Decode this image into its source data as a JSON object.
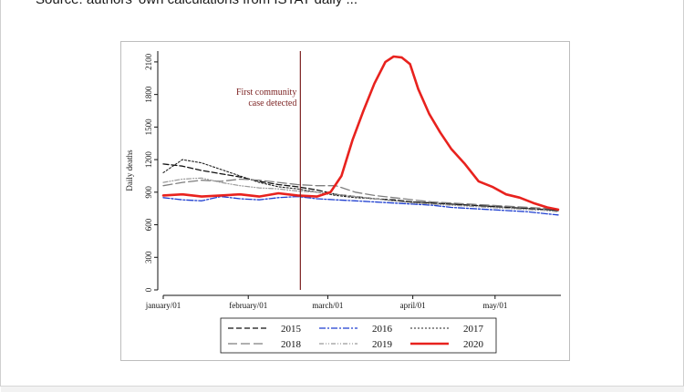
{
  "caption": {
    "source_text": "Source: authors' own calculations from ISTAT daily ..."
  },
  "chart_data": {
    "type": "line",
    "title": "",
    "xlabel": "",
    "ylabel": "Daily deaths",
    "ylim": [
      0,
      2200
    ],
    "xlim": [
      "2000-01-01",
      "2000-05-25"
    ],
    "y_ticks": [
      0,
      300,
      600,
      900,
      1200,
      1500,
      1800,
      2100
    ],
    "x_ticks": [
      {
        "date": "2000-01-01",
        "label": "january/01"
      },
      {
        "date": "2000-02-01",
        "label": "february/01"
      },
      {
        "date": "2000-03-01",
        "label": "march/01"
      },
      {
        "date": "2000-04-01",
        "label": "april/01"
      },
      {
        "date": "2000-05-01",
        "label": "may/01"
      }
    ],
    "grid": false,
    "legend_position": "bottom",
    "annotation": {
      "date": "2000-02-20",
      "text_lines": [
        "First community",
        "case detected"
      ],
      "color": "#7a1f1f"
    },
    "series": [
      {
        "name": "2015",
        "color": "#111111",
        "dash": "6,3",
        "width": 1.3,
        "x": [
          "2000-01-01",
          "2000-01-08",
          "2000-01-15",
          "2000-01-22",
          "2000-01-29",
          "2000-02-05",
          "2000-02-12",
          "2000-02-19",
          "2000-02-26",
          "2000-03-04",
          "2000-03-11",
          "2000-03-18",
          "2000-03-25",
          "2000-04-01",
          "2000-04-08",
          "2000-04-15",
          "2000-04-22",
          "2000-04-29",
          "2000-05-06",
          "2000-05-13",
          "2000-05-20",
          "2000-05-24"
        ],
        "values": [
          1160,
          1140,
          1100,
          1070,
          1040,
          1000,
          970,
          950,
          920,
          880,
          860,
          840,
          830,
          810,
          800,
          790,
          780,
          770,
          760,
          750,
          740,
          730
        ]
      },
      {
        "name": "2016",
        "color": "#1f3fd0",
        "dash": "7,2,2,2",
        "width": 1.3,
        "x": [
          "2000-01-01",
          "2000-01-08",
          "2000-01-15",
          "2000-01-22",
          "2000-01-29",
          "2000-02-05",
          "2000-02-12",
          "2000-02-19",
          "2000-02-26",
          "2000-03-04",
          "2000-03-11",
          "2000-03-18",
          "2000-03-25",
          "2000-04-01",
          "2000-04-08",
          "2000-04-15",
          "2000-04-22",
          "2000-04-29",
          "2000-05-06",
          "2000-05-13",
          "2000-05-20",
          "2000-05-24"
        ],
        "values": [
          850,
          830,
          820,
          860,
          840,
          830,
          850,
          860,
          840,
          830,
          820,
          810,
          800,
          790,
          780,
          760,
          750,
          740,
          730,
          720,
          700,
          690
        ]
      },
      {
        "name": "2017",
        "color": "#222222",
        "dash": "2,2",
        "width": 1.1,
        "x": [
          "2000-01-01",
          "2000-01-08",
          "2000-01-15",
          "2000-01-22",
          "2000-01-29",
          "2000-02-05",
          "2000-02-12",
          "2000-02-19",
          "2000-02-26",
          "2000-03-04",
          "2000-03-11",
          "2000-03-18",
          "2000-03-25",
          "2000-04-01",
          "2000-04-08",
          "2000-04-15",
          "2000-04-22",
          "2000-04-29",
          "2000-05-06",
          "2000-05-13",
          "2000-05-20",
          "2000-05-24"
        ],
        "values": [
          1080,
          1200,
          1170,
          1110,
          1050,
          990,
          950,
          930,
          900,
          870,
          850,
          840,
          820,
          810,
          800,
          790,
          780,
          770,
          760,
          750,
          740,
          730
        ]
      },
      {
        "name": "2018",
        "color": "#7f7f7f",
        "dash": "10,4",
        "width": 1.3,
        "x": [
          "2000-01-01",
          "2000-01-08",
          "2000-01-15",
          "2000-01-22",
          "2000-01-29",
          "2000-02-05",
          "2000-02-12",
          "2000-02-19",
          "2000-02-26",
          "2000-03-04",
          "2000-03-11",
          "2000-03-18",
          "2000-03-25",
          "2000-04-01",
          "2000-04-08",
          "2000-04-15",
          "2000-04-22",
          "2000-04-29",
          "2000-05-06",
          "2000-05-13",
          "2000-05-20",
          "2000-05-24"
        ],
        "values": [
          960,
          990,
          1010,
          1000,
          1020,
          1010,
          990,
          970,
          960,
          960,
          900,
          870,
          850,
          830,
          810,
          800,
          790,
          780,
          770,
          760,
          750,
          740
        ]
      },
      {
        "name": "2019",
        "color": "#9a9a9a",
        "dash": "5,2,1,2,1,2",
        "width": 1.2,
        "x": [
          "2000-01-01",
          "2000-01-08",
          "2000-01-15",
          "2000-01-22",
          "2000-01-29",
          "2000-02-05",
          "2000-02-12",
          "2000-02-19",
          "2000-02-26",
          "2000-03-04",
          "2000-03-11",
          "2000-03-18",
          "2000-03-25",
          "2000-04-01",
          "2000-04-08",
          "2000-04-15",
          "2000-04-22",
          "2000-04-29",
          "2000-05-06",
          "2000-05-13",
          "2000-05-20",
          "2000-05-24"
        ],
        "values": [
          990,
          1020,
          1030,
          990,
          960,
          940,
          930,
          910,
          900,
          880,
          860,
          840,
          820,
          800,
          790,
          780,
          770,
          760,
          750,
          740,
          730,
          720
        ]
      },
      {
        "name": "2020",
        "color": "#e8221e",
        "dash": "",
        "width": 2.6,
        "x": [
          "2000-01-01",
          "2000-01-08",
          "2000-01-15",
          "2000-01-22",
          "2000-01-29",
          "2000-02-05",
          "2000-02-12",
          "2000-02-19",
          "2000-02-26",
          "2000-03-02",
          "2000-03-06",
          "2000-03-10",
          "2000-03-14",
          "2000-03-18",
          "2000-03-22",
          "2000-03-25",
          "2000-03-28",
          "2000-03-31",
          "2000-04-03",
          "2000-04-07",
          "2000-04-11",
          "2000-04-15",
          "2000-04-20",
          "2000-04-25",
          "2000-04-30",
          "2000-05-05",
          "2000-05-10",
          "2000-05-15",
          "2000-05-20",
          "2000-05-24"
        ],
        "values": [
          870,
          880,
          860,
          870,
          880,
          860,
          890,
          870,
          860,
          900,
          1050,
          1380,
          1650,
          1900,
          2100,
          2150,
          2140,
          2080,
          1850,
          1620,
          1450,
          1300,
          1160,
          1000,
          950,
          880,
          850,
          800,
          760,
          740
        ]
      }
    ]
  }
}
